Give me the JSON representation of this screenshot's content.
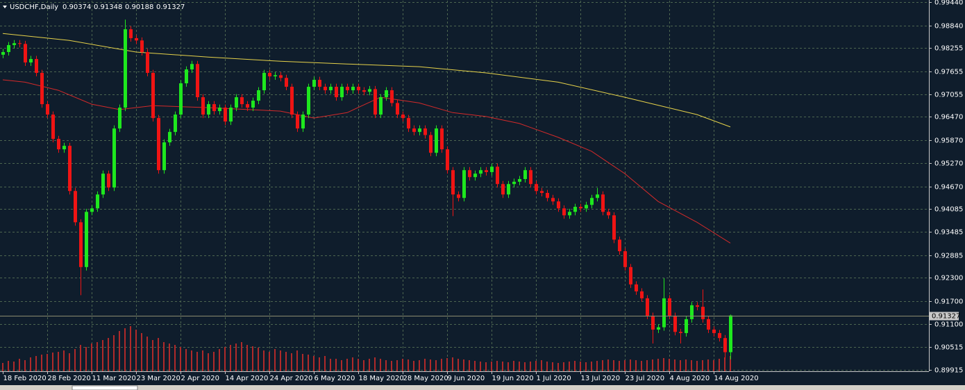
{
  "chart_data": {
    "type": "candlestick",
    "title": "USDCHF,Daily",
    "up_color": "#1ee81e",
    "down_color": "#f01414",
    "candles": [
      [
        0.9808,
        0.9823,
        0.9799,
        0.9815
      ],
      [
        0.9815,
        0.9841,
        0.9806,
        0.9833
      ],
      [
        0.9833,
        0.9846,
        0.9824,
        0.9838
      ],
      [
        0.9838,
        0.9846,
        0.9827,
        0.9836
      ],
      [
        0.9836,
        0.9844,
        0.9779,
        0.9788
      ],
      [
        0.9788,
        0.9805,
        0.9779,
        0.9797
      ],
      [
        0.9797,
        0.9805,
        0.9752,
        0.9761
      ],
      [
        0.9761,
        0.9769,
        0.9671,
        0.968
      ],
      [
        0.968,
        0.9688,
        0.9644,
        0.9653
      ],
      [
        0.9653,
        0.9661,
        0.9581,
        0.959
      ],
      [
        0.959,
        0.9598,
        0.9554,
        0.9563
      ],
      [
        0.9563,
        0.958,
        0.9554,
        0.9572
      ],
      [
        0.9572,
        0.958,
        0.9446,
        0.9455
      ],
      [
        0.9455,
        0.9463,
        0.9365,
        0.9374
      ],
      [
        0.9374,
        0.9382,
        0.9185,
        0.9258
      ],
      [
        0.9258,
        0.9409,
        0.9249,
        0.9401
      ],
      [
        0.9401,
        0.9418,
        0.9392,
        0.941
      ],
      [
        0.941,
        0.9454,
        0.9401,
        0.9446
      ],
      [
        0.9446,
        0.9508,
        0.9437,
        0.95
      ],
      [
        0.95,
        0.9508,
        0.9455,
        0.9464
      ],
      [
        0.9464,
        0.9625,
        0.9455,
        0.9617
      ],
      [
        0.9617,
        0.9679,
        0.9608,
        0.9671
      ],
      [
        0.9671,
        0.9899,
        0.9662,
        0.9874
      ],
      [
        0.9874,
        0.9882,
        0.9842,
        0.9851
      ],
      [
        0.9851,
        0.9859,
        0.9836,
        0.9845
      ],
      [
        0.9845,
        0.9853,
        0.9806,
        0.9815
      ],
      [
        0.9815,
        0.9823,
        0.9752,
        0.9761
      ],
      [
        0.9761,
        0.9769,
        0.9635,
        0.9644
      ],
      [
        0.9644,
        0.9652,
        0.95,
        0.9509
      ],
      [
        0.9509,
        0.9589,
        0.95,
        0.9581
      ],
      [
        0.9581,
        0.9616,
        0.9572,
        0.9608
      ],
      [
        0.9608,
        0.9661,
        0.9599,
        0.9653
      ],
      [
        0.9653,
        0.9742,
        0.9644,
        0.9734
      ],
      [
        0.9734,
        0.9778,
        0.9725,
        0.977
      ],
      [
        0.977,
        0.9792,
        0.9761,
        0.9784
      ],
      [
        0.9784,
        0.9792,
        0.9689,
        0.9698
      ],
      [
        0.9698,
        0.9706,
        0.9644,
        0.9653
      ],
      [
        0.9653,
        0.9688,
        0.9644,
        0.968
      ],
      [
        0.968,
        0.9688,
        0.9653,
        0.9662
      ],
      [
        0.9662,
        0.9679,
        0.9653,
        0.9671
      ],
      [
        0.9671,
        0.9679,
        0.9626,
        0.9635
      ],
      [
        0.9635,
        0.9679,
        0.9626,
        0.9671
      ],
      [
        0.9671,
        0.9706,
        0.9662,
        0.9698
      ],
      [
        0.9698,
        0.9706,
        0.9671,
        0.968
      ],
      [
        0.968,
        0.9688,
        0.9662,
        0.9671
      ],
      [
        0.9671,
        0.9697,
        0.9662,
        0.9689
      ],
      [
        0.9689,
        0.9724,
        0.968,
        0.9716
      ],
      [
        0.9716,
        0.9769,
        0.9707,
        0.9761
      ],
      [
        0.9761,
        0.9769,
        0.9743,
        0.9752
      ],
      [
        0.9752,
        0.9763,
        0.9743,
        0.9755
      ],
      [
        0.9755,
        0.9763,
        0.9739,
        0.9748
      ],
      [
        0.9748,
        0.9756,
        0.9716,
        0.9725
      ],
      [
        0.9725,
        0.9733,
        0.9644,
        0.9653
      ],
      [
        0.9653,
        0.9661,
        0.9608,
        0.9617
      ],
      [
        0.9617,
        0.9661,
        0.9608,
        0.9653
      ],
      [
        0.9653,
        0.9733,
        0.9644,
        0.9725
      ],
      [
        0.9725,
        0.9751,
        0.9716,
        0.9743
      ],
      [
        0.9743,
        0.9751,
        0.9716,
        0.9725
      ],
      [
        0.9725,
        0.9733,
        0.9707,
        0.9716
      ],
      [
        0.9716,
        0.9733,
        0.9707,
        0.9725
      ],
      [
        0.9725,
        0.9733,
        0.9689,
        0.9698
      ],
      [
        0.9698,
        0.9733,
        0.9689,
        0.9725
      ],
      [
        0.9725,
        0.9733,
        0.9707,
        0.9716
      ],
      [
        0.9716,
        0.9733,
        0.9707,
        0.9725
      ],
      [
        0.9725,
        0.9733,
        0.9707,
        0.9716
      ],
      [
        0.9716,
        0.9724,
        0.9703,
        0.9712
      ],
      [
        0.9712,
        0.9727,
        0.9703,
        0.9719
      ],
      [
        0.9719,
        0.9727,
        0.9644,
        0.9653
      ],
      [
        0.9653,
        0.9706,
        0.9644,
        0.9698
      ],
      [
        0.9698,
        0.9724,
        0.9689,
        0.9716
      ],
      [
        0.9716,
        0.9724,
        0.9674,
        0.9683
      ],
      [
        0.9683,
        0.9691,
        0.9644,
        0.9653
      ],
      [
        0.9653,
        0.9661,
        0.9635,
        0.9644
      ],
      [
        0.9644,
        0.9652,
        0.9608,
        0.9617
      ],
      [
        0.9617,
        0.9625,
        0.9599,
        0.9608
      ],
      [
        0.9608,
        0.9625,
        0.9599,
        0.9617
      ],
      [
        0.9617,
        0.9625,
        0.9591,
        0.96
      ],
      [
        0.96,
        0.9608,
        0.9545,
        0.9554
      ],
      [
        0.9554,
        0.9625,
        0.9545,
        0.9617
      ],
      [
        0.9617,
        0.9625,
        0.9554,
        0.9563
      ],
      [
        0.9563,
        0.9571,
        0.95,
        0.9509
      ],
      [
        0.9509,
        0.9517,
        0.939,
        0.9446
      ],
      [
        0.9446,
        0.9454,
        0.9428,
        0.9437
      ],
      [
        0.9437,
        0.9517,
        0.9428,
        0.9509
      ],
      [
        0.9509,
        0.9517,
        0.9482,
        0.9491
      ],
      [
        0.9491,
        0.9508,
        0.9482,
        0.95
      ],
      [
        0.95,
        0.9517,
        0.9491,
        0.9509
      ],
      [
        0.9509,
        0.9517,
        0.9495,
        0.9504
      ],
      [
        0.9504,
        0.9526,
        0.9495,
        0.9518
      ],
      [
        0.9518,
        0.9526,
        0.9464,
        0.9473
      ],
      [
        0.9473,
        0.9481,
        0.9437,
        0.9446
      ],
      [
        0.9446,
        0.9481,
        0.9437,
        0.9473
      ],
      [
        0.9473,
        0.9487,
        0.9464,
        0.9479
      ],
      [
        0.9479,
        0.9494,
        0.947,
        0.9486
      ],
      [
        0.9486,
        0.9517,
        0.9477,
        0.9509
      ],
      [
        0.9509,
        0.9517,
        0.9464,
        0.9473
      ],
      [
        0.9473,
        0.9481,
        0.9446,
        0.9455
      ],
      [
        0.9455,
        0.9463,
        0.9441,
        0.945
      ],
      [
        0.945,
        0.9458,
        0.9428,
        0.9437
      ],
      [
        0.9437,
        0.9445,
        0.9419,
        0.9428
      ],
      [
        0.9428,
        0.9436,
        0.9401,
        0.941
      ],
      [
        0.941,
        0.9418,
        0.9383,
        0.9392
      ],
      [
        0.9392,
        0.9409,
        0.9383,
        0.9401
      ],
      [
        0.9401,
        0.9422,
        0.9392,
        0.9414
      ],
      [
        0.9414,
        0.9422,
        0.9401,
        0.941
      ],
      [
        0.941,
        0.9427,
        0.9401,
        0.9419
      ],
      [
        0.9419,
        0.9445,
        0.941,
        0.9437
      ],
      [
        0.9437,
        0.9463,
        0.9428,
        0.9446
      ],
      [
        0.9446,
        0.9454,
        0.9392,
        0.9401
      ],
      [
        0.9401,
        0.9409,
        0.9383,
        0.9392
      ],
      [
        0.9392,
        0.94,
        0.932,
        0.9329
      ],
      [
        0.9329,
        0.9337,
        0.929,
        0.9299
      ],
      [
        0.9299,
        0.9307,
        0.9249,
        0.9258
      ],
      [
        0.9258,
        0.9266,
        0.9204,
        0.9213
      ],
      [
        0.9213,
        0.9221,
        0.9186,
        0.9195
      ],
      [
        0.9195,
        0.9203,
        0.9168,
        0.9177
      ],
      [
        0.9177,
        0.9185,
        0.9123,
        0.9132
      ],
      [
        0.9132,
        0.914,
        0.906,
        0.9096
      ],
      [
        0.9096,
        0.911,
        0.9087,
        0.9102
      ],
      [
        0.9102,
        0.9229,
        0.9093,
        0.9177
      ],
      [
        0.9177,
        0.9185,
        0.9123,
        0.9132
      ],
      [
        0.9132,
        0.914,
        0.9081,
        0.909
      ],
      [
        0.909,
        0.9098,
        0.906,
        0.9087
      ],
      [
        0.9087,
        0.9131,
        0.9078,
        0.9123
      ],
      [
        0.9123,
        0.9167,
        0.9114,
        0.9159
      ],
      [
        0.9159,
        0.9167,
        0.9146,
        0.9155
      ],
      [
        0.9155,
        0.92,
        0.9114,
        0.9123
      ],
      [
        0.9123,
        0.9131,
        0.9087,
        0.9096
      ],
      [
        0.9096,
        0.9104,
        0.9078,
        0.9087
      ],
      [
        0.9087,
        0.9095,
        0.9065,
        0.9074
      ],
      [
        0.9074,
        0.9082,
        0.9019,
        0.90374
      ],
      [
        0.90374,
        0.91348,
        0.90188,
        0.91327
      ]
    ],
    "volume_color": "#b02a2a",
    "volume_lim": [
      0,
      100
    ],
    "volumes": [
      12,
      15,
      14,
      18,
      16,
      20,
      22,
      24,
      25,
      27,
      28,
      30,
      26,
      32,
      38,
      35,
      40,
      42,
      45,
      48,
      52,
      58,
      62,
      65,
      60,
      55,
      50,
      45,
      48,
      42,
      40,
      38,
      35,
      32,
      30,
      28,
      30,
      26,
      28,
      32,
      35,
      38,
      40,
      42,
      38,
      36,
      34,
      30,
      28,
      32,
      30,
      28,
      26,
      30,
      25,
      24,
      22,
      20,
      22,
      18,
      18,
      16,
      18,
      20,
      18,
      16,
      18,
      20,
      18,
      16,
      15,
      16,
      18,
      17,
      15,
      16,
      18,
      17,
      16,
      18,
      19,
      20,
      18,
      17,
      16,
      15,
      14,
      13,
      14,
      15,
      14,
      13,
      15,
      14,
      13,
      14,
      15,
      16,
      14,
      13,
      12,
      13,
      14,
      15,
      14,
      13,
      14,
      15,
      16,
      17,
      16,
      15,
      16,
      17,
      16,
      15,
      16,
      17,
      18,
      19,
      18,
      17,
      16,
      17,
      16,
      15,
      16,
      17,
      16,
      18,
      20,
      22
    ],
    "lines": [
      {
        "color": "#e6d24a",
        "x": [
          0,
          12,
          24,
          37,
          50,
          62,
          75,
          87,
          100,
          112,
          125,
          131
        ],
        "values": [
          0.9863,
          0.9845,
          0.9815,
          0.9802,
          0.9791,
          0.9784,
          0.9777,
          0.9761,
          0.9737,
          0.9698,
          0.9653,
          0.9621
        ]
      },
      {
        "color": "#d42a2a",
        "x": [
          0,
          4,
          10,
          16,
          21,
          27,
          37,
          50,
          56,
          62,
          68,
          75,
          81,
          87,
          93,
          100,
          106,
          112,
          118,
          125,
          131
        ],
        "values": [
          0.9743,
          0.9737,
          0.9716,
          0.968,
          0.9666,
          0.9676,
          0.9671,
          0.9662,
          0.9644,
          0.9658,
          0.9698,
          0.9683,
          0.9658,
          0.9648,
          0.963,
          0.9594,
          0.9558,
          0.95,
          0.9428,
          0.9374,
          0.932
        ]
      }
    ],
    "xlim": [
      -0.5,
      166.75
    ],
    "xticks": [
      {
        "value": 0,
        "label": "18 Feb 2020"
      },
      {
        "value": 8,
        "label": "28 Feb 2020"
      },
      {
        "value": 16,
        "label": "11 Mar 2020"
      },
      {
        "value": 24,
        "label": "23 Mar 2020"
      },
      {
        "value": 32,
        "label": "2 Apr 2020"
      },
      {
        "value": 40,
        "label": "14 Apr 2020"
      },
      {
        "value": 48,
        "label": "24 Apr 2020"
      },
      {
        "value": 56,
        "label": "6 May 2020"
      },
      {
        "value": 64,
        "label": "18 May 2020"
      },
      {
        "value": 72,
        "label": "28 May 2020"
      },
      {
        "value": 80,
        "label": "9 Jun 2020"
      },
      {
        "value": 88,
        "label": "19 Jun 2020"
      },
      {
        "value": 96,
        "label": "1 Jul 2020"
      },
      {
        "value": 104,
        "label": "13 Jul 2020"
      },
      {
        "value": 112,
        "label": "23 Jul 2020"
      },
      {
        "value": 120,
        "label": "4 Aug 2020"
      },
      {
        "value": 128,
        "label": "14 Aug 2020"
      }
    ],
    "ylim": [
      0.8988,
      0.9948
    ],
    "yticks": [
      {
        "value": 0.9944,
        "label": "0.99440"
      },
      {
        "value": 0.9884,
        "label": "0.98840"
      },
      0.98255,
      0.97655,
      0.97055,
      {
        "value": 0.9647,
        "label": "0.96470"
      },
      {
        "value": 0.9587,
        "label": "0.95870"
      },
      {
        "value": 0.9527,
        "label": "0.95270"
      },
      {
        "value": 0.9467,
        "label": "0.94670"
      },
      0.94085,
      0.93485,
      0.92885,
      {
        "value": 0.923,
        "label": "0.92300"
      },
      {
        "value": 0.917,
        "label": "0.91700"
      },
      {
        "value": 0.911,
        "label": "0.91100"
      },
      0.90515,
      0.89915
    ],
    "grid": true
  }
}
